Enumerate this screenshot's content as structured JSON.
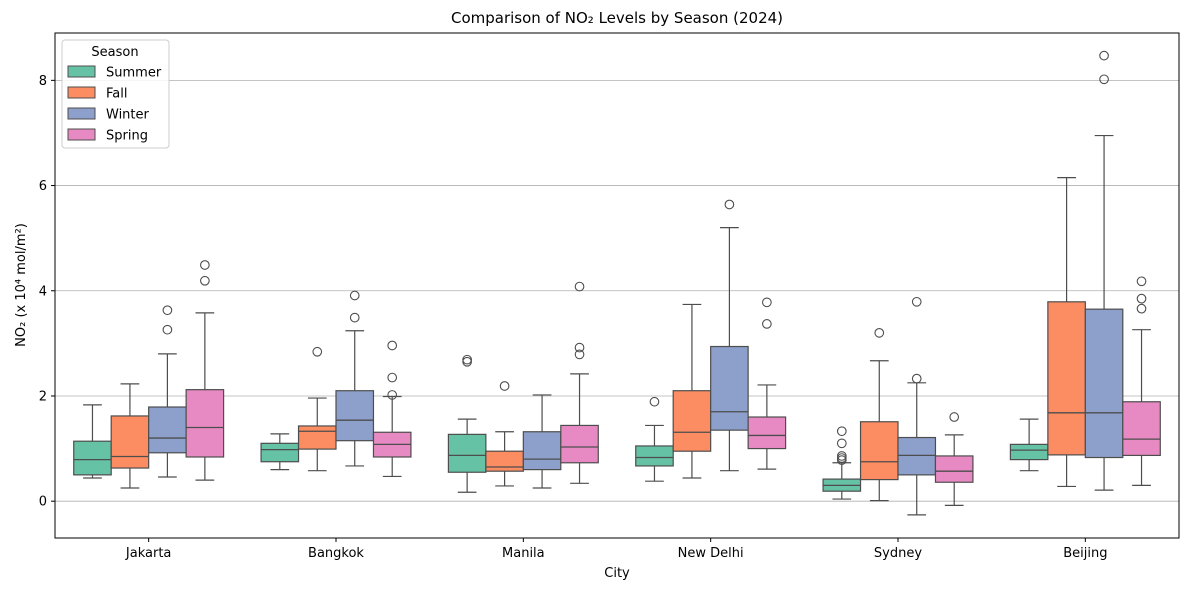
{
  "chart_data": {
    "type": "boxplot",
    "title": "Comparison of NO₂ Levels by Season (2024)",
    "xlabel": "City",
    "ylabel": "NO₂ (x 10⁴ mol/m²)",
    "ylim": [
      -0.7,
      8.9
    ],
    "yticks": [
      0,
      2,
      4,
      6,
      8
    ],
    "grid": "horizontal",
    "categories": [
      "Jakarta",
      "Bangkok",
      "Manila",
      "New Delhi",
      "Sydney",
      "Beijing"
    ],
    "legend": {
      "title": "Season",
      "placement": "top-left"
    },
    "series": [
      {
        "name": "Summer",
        "color": "#66c2a5",
        "boxes": [
          {
            "whislo": 0.44,
            "q1": 0.5,
            "med": 0.79,
            "q3": 1.14,
            "whishi": 1.83,
            "fliers": []
          },
          {
            "whislo": 0.6,
            "q1": 0.75,
            "med": 0.98,
            "q3": 1.1,
            "whishi": 1.28,
            "fliers": []
          },
          {
            "whislo": 0.17,
            "q1": 0.55,
            "med": 0.87,
            "q3": 1.27,
            "whishi": 1.56,
            "fliers": [
              2.65,
              2.69
            ]
          },
          {
            "whislo": 0.38,
            "q1": 0.67,
            "med": 0.83,
            "q3": 1.05,
            "whishi": 1.44,
            "fliers": [
              1.89
            ]
          },
          {
            "whislo": 0.04,
            "q1": 0.19,
            "med": 0.3,
            "q3": 0.42,
            "whishi": 0.73,
            "fliers": [
              0.78,
              0.82,
              0.86,
              1.1,
              1.33
            ]
          },
          {
            "whislo": 0.58,
            "q1": 0.79,
            "med": 0.97,
            "q3": 1.08,
            "whishi": 1.56,
            "fliers": []
          }
        ]
      },
      {
        "name": "Fall",
        "color": "#fc8d62",
        "boxes": [
          {
            "whislo": 0.25,
            "q1": 0.63,
            "med": 0.85,
            "q3": 1.62,
            "whishi": 2.23,
            "fliers": []
          },
          {
            "whislo": 0.58,
            "q1": 0.99,
            "med": 1.33,
            "q3": 1.43,
            "whishi": 1.96,
            "fliers": [
              2.84
            ]
          },
          {
            "whislo": 0.29,
            "q1": 0.57,
            "med": 0.65,
            "q3": 0.95,
            "whishi": 1.32,
            "fliers": [
              2.19
            ]
          },
          {
            "whislo": 0.44,
            "q1": 0.95,
            "med": 1.31,
            "q3": 2.1,
            "whishi": 3.74,
            "fliers": []
          },
          {
            "whislo": 0.01,
            "q1": 0.41,
            "med": 0.75,
            "q3": 1.51,
            "whishi": 2.67,
            "fliers": [
              3.2
            ]
          },
          {
            "whislo": 0.28,
            "q1": 0.88,
            "med": 1.68,
            "q3": 3.79,
            "whishi": 6.15,
            "fliers": []
          }
        ]
      },
      {
        "name": "Winter",
        "color": "#8da0cb",
        "boxes": [
          {
            "whislo": 0.46,
            "q1": 0.92,
            "med": 1.2,
            "q3": 1.79,
            "whishi": 2.8,
            "fliers": [
              3.26,
              3.63
            ]
          },
          {
            "whislo": 0.67,
            "q1": 1.15,
            "med": 1.54,
            "q3": 2.1,
            "whishi": 3.24,
            "fliers": [
              3.49,
              3.91
            ]
          },
          {
            "whislo": 0.25,
            "q1": 0.6,
            "med": 0.8,
            "q3": 1.32,
            "whishi": 2.02,
            "fliers": []
          },
          {
            "whislo": 0.58,
            "q1": 1.35,
            "med": 1.7,
            "q3": 2.94,
            "whishi": 5.2,
            "fliers": [
              5.64
            ]
          },
          {
            "whislo": -0.26,
            "q1": 0.5,
            "med": 0.87,
            "q3": 1.21,
            "whishi": 2.25,
            "fliers": [
              2.33,
              3.79
            ]
          },
          {
            "whislo": 0.21,
            "q1": 0.83,
            "med": 1.68,
            "q3": 3.65,
            "whishi": 6.95,
            "fliers": [
              8.02,
              8.47
            ]
          }
        ]
      },
      {
        "name": "Spring",
        "color": "#e78ac3",
        "boxes": [
          {
            "whislo": 0.4,
            "q1": 0.84,
            "med": 1.4,
            "q3": 2.12,
            "whishi": 3.58,
            "fliers": [
              4.19,
              4.49
            ]
          },
          {
            "whislo": 0.47,
            "q1": 0.84,
            "med": 1.08,
            "q3": 1.31,
            "whishi": 1.99,
            "fliers": [
              2.02,
              2.35,
              2.96
            ]
          },
          {
            "whislo": 0.34,
            "q1": 0.73,
            "med": 1.03,
            "q3": 1.44,
            "whishi": 2.42,
            "fliers": [
              2.79,
              2.92,
              4.08
            ]
          },
          {
            "whislo": 0.61,
            "q1": 1.0,
            "med": 1.25,
            "q3": 1.6,
            "whishi": 2.21,
            "fliers": [
              3.37,
              3.78
            ]
          },
          {
            "whislo": -0.08,
            "q1": 0.36,
            "med": 0.57,
            "q3": 0.86,
            "whishi": 1.26,
            "fliers": [
              1.6
            ]
          },
          {
            "whislo": 0.3,
            "q1": 0.87,
            "med": 1.18,
            "q3": 1.89,
            "whishi": 3.26,
            "fliers": [
              3.66,
              3.85,
              4.18
            ]
          }
        ]
      }
    ]
  }
}
